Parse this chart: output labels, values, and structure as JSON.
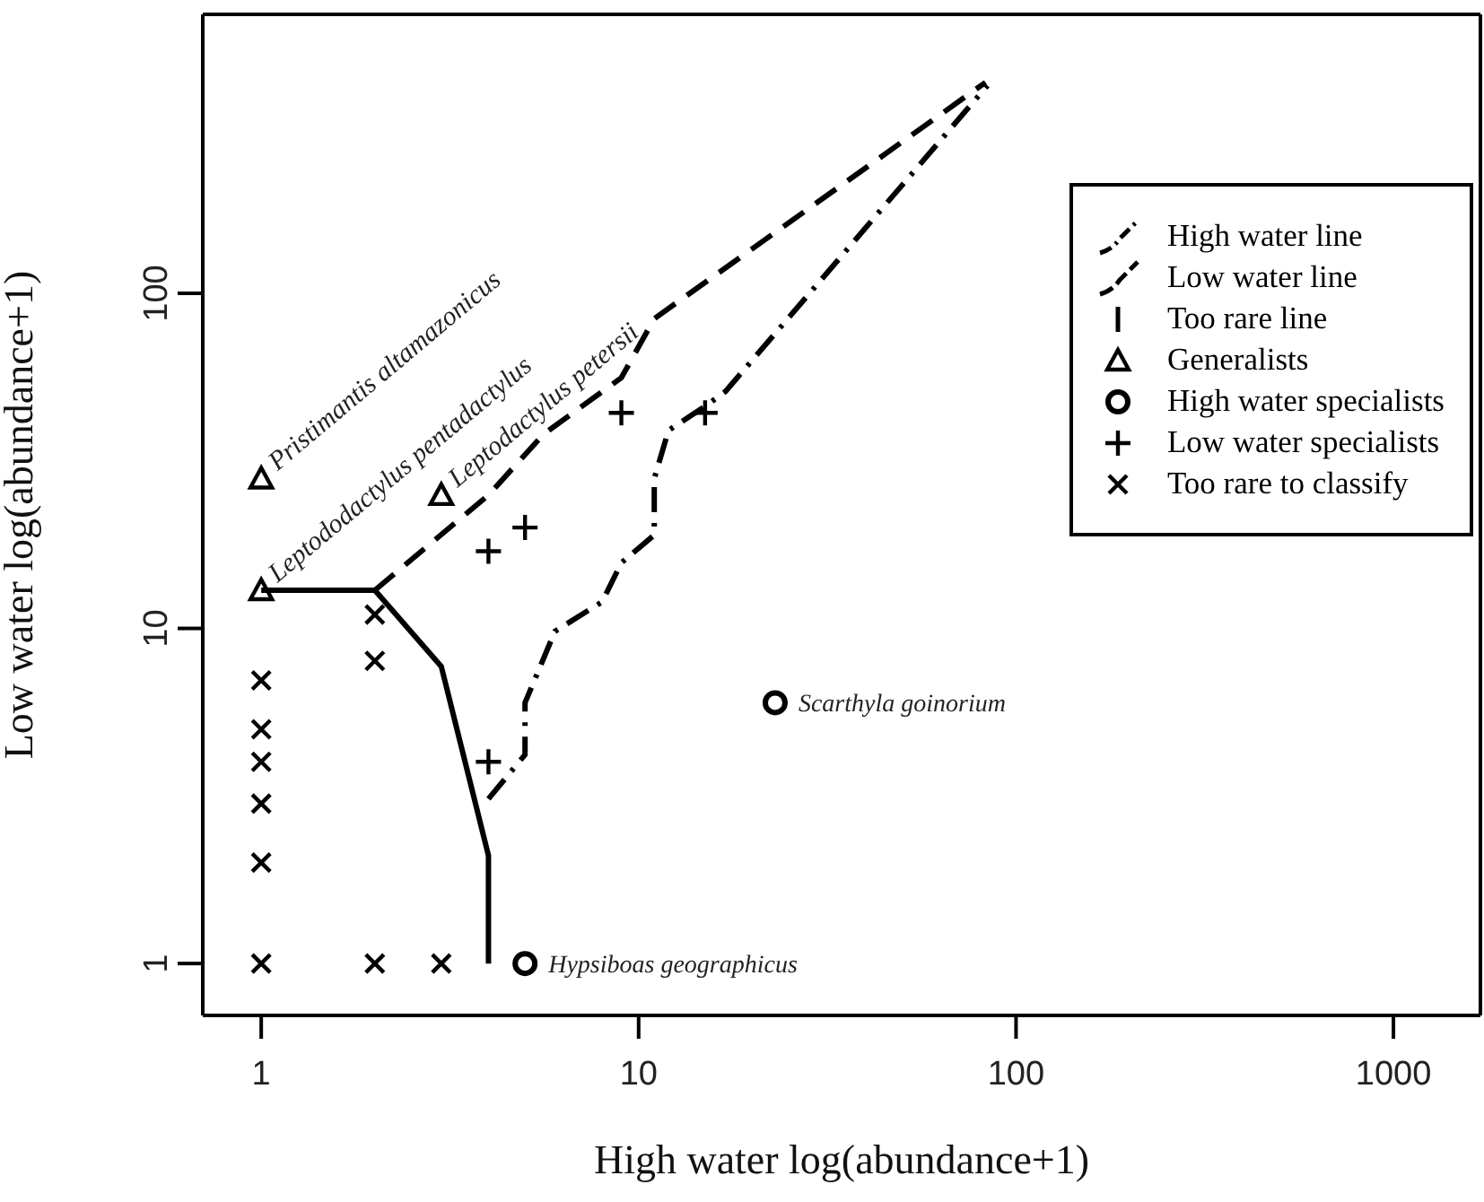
{
  "chart_data": {
    "type": "scatter",
    "xlabel": "High water log(abundance+1)",
    "ylabel": "Low water log(abundance+1)",
    "log": "xy",
    "grid": false,
    "legend": "top right",
    "xlim": [
      0.7,
      1700
    ],
    "xticks": [
      1,
      10,
      100,
      1000
    ],
    "ylim": [
      0.7,
      680
    ],
    "yticks": [
      1,
      10,
      100
    ],
    "series": [
      {
        "name": "High water line",
        "type": "line",
        "color": "#000000",
        "marker": "none",
        "line_style": "dashdot",
        "x": [
          4,
          5,
          5,
          6,
          8,
          9,
          11,
          11,
          12,
          15,
          17,
          84
        ],
        "values": [
          3.1,
          4.2,
          6,
          9.8,
          12,
          15.7,
          19,
          28,
          39,
          46,
          51,
          417
        ]
      },
      {
        "name": "Low water line",
        "type": "line",
        "color": "#000000",
        "marker": "none",
        "line_style": "dashed",
        "x": [
          2,
          4,
          5.6,
          9,
          11,
          83
        ],
        "values": [
          13,
          25,
          38,
          56,
          84,
          426
        ]
      },
      {
        "name": "Too rare line",
        "type": "line",
        "color": "#000000",
        "marker": "none",
        "line_style": "solid",
        "x": [
          1,
          2,
          3,
          4,
          4
        ],
        "values": [
          13,
          13,
          7.7,
          2.1,
          1
        ]
      },
      {
        "name": "Generalists",
        "color": "#000000",
        "marker": "triangle",
        "x": [
          1,
          1,
          3
        ],
        "values": [
          28,
          13,
          25
        ]
      },
      {
        "name": "High water specialists",
        "color": "#000000",
        "marker": "circle",
        "x": [
          5,
          23
        ],
        "values": [
          1,
          6
        ]
      },
      {
        "name": "Low water specialists",
        "color": "#000000",
        "marker": "plus",
        "x": [
          9,
          15,
          5,
          4,
          4
        ],
        "values": [
          44,
          44,
          20,
          17,
          4
        ]
      },
      {
        "name": "Too rare to classify",
        "color": "#000000",
        "marker": "cross",
        "x": [
          1,
          1,
          1,
          1,
          1,
          1,
          2,
          2,
          2,
          3
        ],
        "values": [
          1,
          2,
          3,
          4,
          5,
          7,
          8,
          11,
          1,
          1
        ]
      }
    ],
    "annotations": [
      {
        "text": "Pristimantis altamazonicus",
        "x": 1,
        "y": 28
      },
      {
        "text": "Leptododactylus pentadactylus",
        "x": 1,
        "y": 13
      },
      {
        "text": "Leptodactylus petersii",
        "x": 3,
        "y": 25
      },
      {
        "text": "Scarthyla goinorium",
        "x": 23,
        "y": 6
      },
      {
        "text": "Hypsiboas geographicus",
        "x": 5,
        "y": 1
      }
    ]
  }
}
